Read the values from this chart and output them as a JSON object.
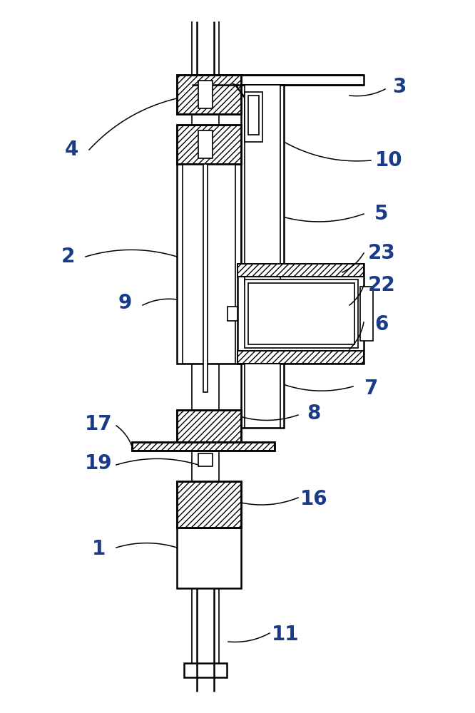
{
  "bg_color": "#ffffff",
  "line_color": "#000000",
  "figsize": [
    6.66,
    10.0
  ],
  "dpi": 100,
  "lw_thin": 1.2,
  "lw_med": 1.8,
  "lw_thick": 2.2,
  "label_color": "#1a3a8a",
  "label_fs": 20,
  "hatch": "////"
}
